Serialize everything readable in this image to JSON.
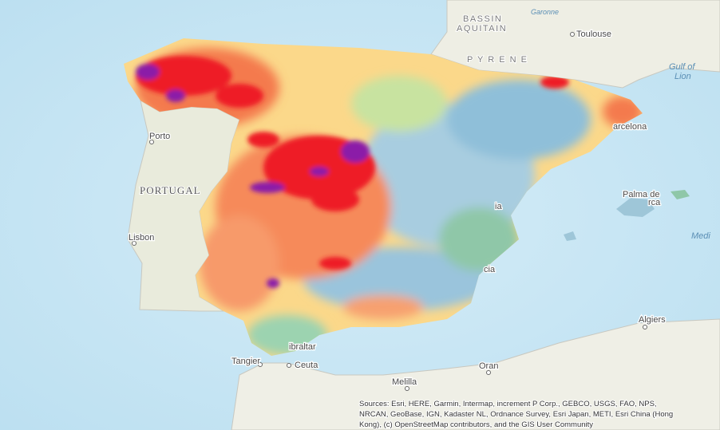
{
  "map": {
    "labels": {
      "bassin": "BASSIN",
      "aquitain": "AQUITAIN",
      "garonne": "Garonne",
      "toulouse": "Toulouse",
      "pyrenees": "P Y R E N E",
      "gulf_1": "Gulf of",
      "gulf_2": "Lion",
      "porto": "Porto",
      "portugal": "PORTUGAL",
      "lisbon": "Lisbon",
      "barcelona": "arcelona",
      "palma": "Palma de",
      "mallorca": "rca",
      "medi": "Medi",
      "algiers": "Algiers",
      "tangier": "Tangier",
      "ceuta": "Ceuta",
      "gibraltar": "ibraltar",
      "melilla": "Melilla",
      "oran": "Oran",
      "murcia": "cia",
      "valencia": "ia"
    },
    "attribution": [
      "Sources: Esri, HERE, Garmin, Intermap, increment P Corp., GEBCO, USGS, FAO, NPS,",
      "NRCAN, GeoBase, IGN, Kadaster NL, Ordnance Survey, Esri Japan, METI, Esri China (Hong",
      "Kong), (c) OpenStreetMap contributors, and the GIS User Community"
    ]
  }
}
